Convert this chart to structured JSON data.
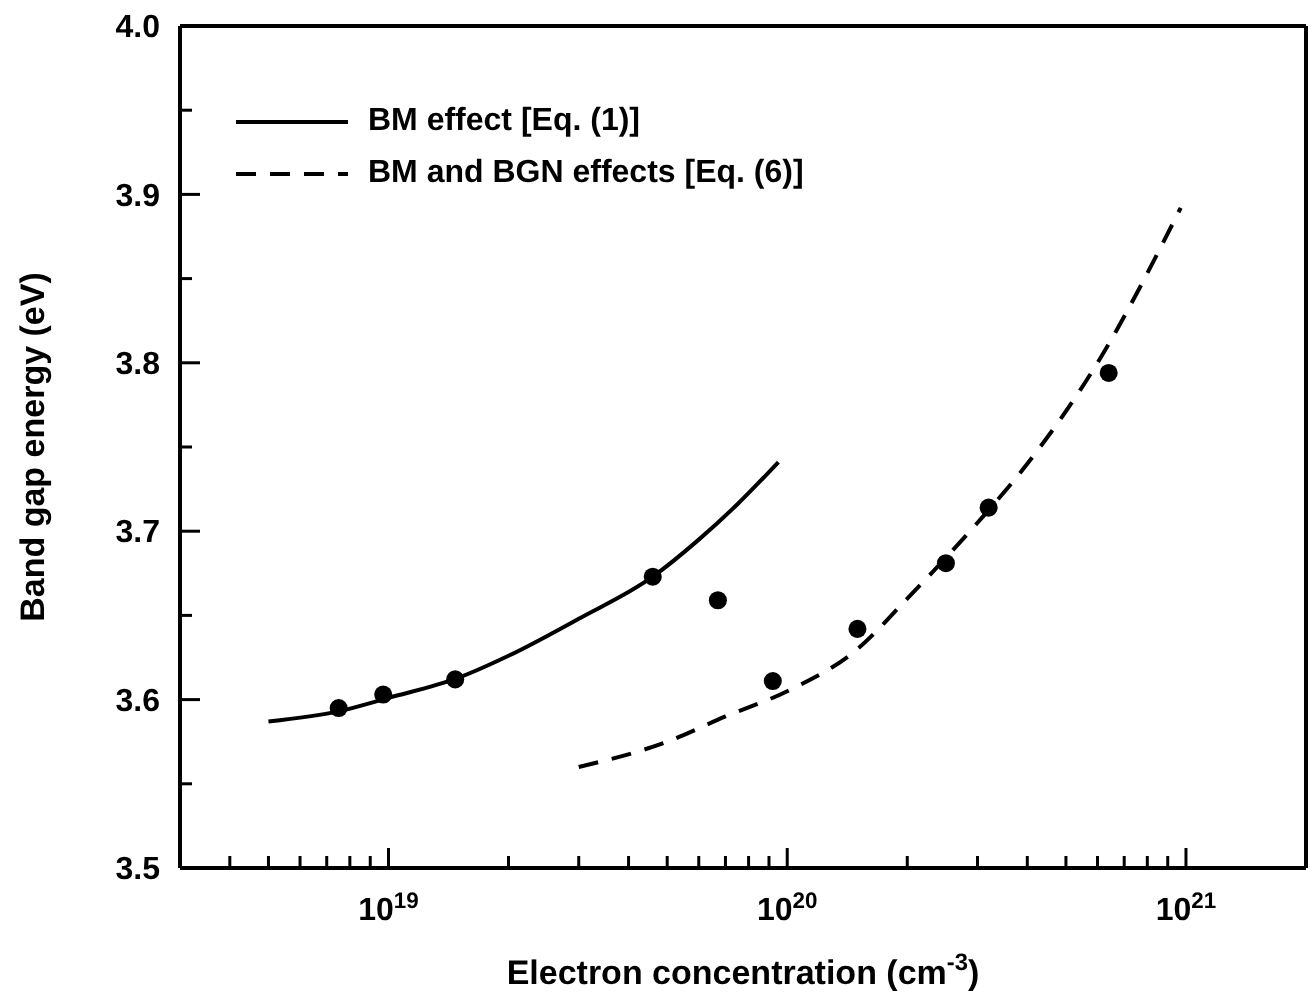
{
  "chart_data": {
    "type": "line",
    "xlabel": "Electron concentration (cm$^{-3}$)",
    "ylabel": "Band gap energy (eV)",
    "log": "x",
    "legend": "top left",
    "xlim": [
      3e+18,
      2e+21
    ],
    "xticks": [
      {
        "value": 4e+18,
        "label": null
      },
      {
        "value": 5e+18,
        "label": null
      },
      {
        "value": 6e+18,
        "label": null
      },
      {
        "value": 7e+18,
        "label": null
      },
      {
        "value": 8e+18,
        "label": null
      },
      {
        "value": 9e+18,
        "label": null
      },
      {
        "value": 1e+19,
        "label": "10$^{19}$"
      },
      {
        "value": 2e+19,
        "label": null
      },
      {
        "value": 3e+19,
        "label": null
      },
      {
        "value": 4e+19,
        "label": null
      },
      {
        "value": 5e+19,
        "label": null
      },
      {
        "value": 6e+19,
        "label": null
      },
      {
        "value": 7e+19,
        "label": null
      },
      {
        "value": 8e+19,
        "label": null
      },
      {
        "value": 9e+19,
        "label": null
      },
      {
        "value": 1e+20,
        "label": "10$^{20}$"
      },
      {
        "value": 2e+20,
        "label": null
      },
      {
        "value": 3e+20,
        "label": null
      },
      {
        "value": 4e+20,
        "label": null
      },
      {
        "value": 5e+20,
        "label": null
      },
      {
        "value": 6e+20,
        "label": null
      },
      {
        "value": 7e+20,
        "label": null
      },
      {
        "value": 8e+20,
        "label": null
      },
      {
        "value": 9e+20,
        "label": null
      },
      {
        "value": 1e+21,
        "label": "10$^{21}$"
      }
    ],
    "ylim": [
      3.5,
      4.0
    ],
    "yticks": [
      {
        "value": 3.5,
        "label": "3.5"
      },
      {
        "value": 3.55,
        "label": null
      },
      {
        "value": 3.6,
        "label": "3.6"
      },
      {
        "value": 3.65,
        "label": null
      },
      {
        "value": 3.7,
        "label": "3.7"
      },
      {
        "value": 3.75,
        "label": null
      },
      {
        "value": 3.8,
        "label": "3.8"
      },
      {
        "value": 3.85,
        "label": null
      },
      {
        "value": 3.9,
        "label": "3.9"
      },
      {
        "value": 3.95,
        "label": null
      },
      {
        "value": 4.0,
        "label": "4.0"
      }
    ],
    "series": [
      {
        "name": "BM effect [Eq. (1)]",
        "type": "line",
        "line_style": "solid",
        "marker": "none",
        "color": "#000000",
        "x": [
          5e+18,
          7.5e+18,
          1e+19,
          1.5e+19,
          2e+19,
          3e+19,
          4.6e+19,
          6e+19,
          7.5e+19,
          9.5e+19
        ],
        "values": [
          3.587,
          3.593,
          3.601,
          3.613,
          3.626,
          3.648,
          3.673,
          3.695,
          3.716,
          3.741
        ]
      },
      {
        "name": "BM and BGN effects [Eq. (6)]",
        "type": "line",
        "line_style": "dashed",
        "marker": "none",
        "color": "#000000",
        "x": [
          3e+19,
          5e+19,
          7e+19,
          1e+20,
          1.5e+20,
          2e+20,
          3e+20,
          4e+20,
          6e+20,
          9.7e+20
        ],
        "values": [
          3.56,
          3.575,
          3.59,
          3.605,
          3.63,
          3.66,
          3.705,
          3.74,
          3.8,
          3.892
        ]
      },
      {
        "type": "scatter",
        "marker": "circle",
        "color": "#000000",
        "x": [
          7.5e+18,
          9.7e+18,
          1.47e+19,
          4.6e+19,
          6.7e+19,
          9.2e+19,
          1.5e+20,
          2.5e+20,
          3.2e+20,
          6.4e+20
        ],
        "values": [
          3.595,
          3.603,
          3.612,
          3.673,
          3.659,
          3.611,
          3.642,
          3.681,
          3.714,
          3.794
        ]
      }
    ]
  }
}
